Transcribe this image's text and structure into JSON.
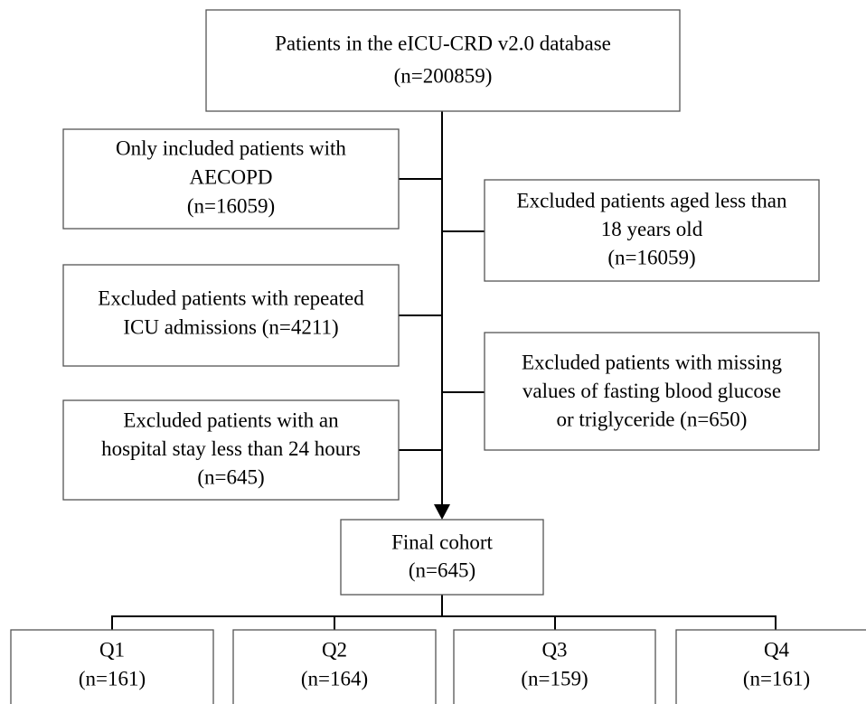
{
  "nodes": [
    {
      "lines": [
        "Patients in the eICU-CRD v2.0 database",
        "(n=200859)"
      ]
    },
    {
      "lines": [
        "Only included patients with",
        "AECOPD",
        "(n=16059)"
      ]
    },
    {
      "lines": [
        "Excluded patients aged less than",
        "18 years old",
        "(n=16059)"
      ]
    },
    {
      "lines": [
        "Excluded patients with repeated",
        "ICU admissions (n=4211)"
      ]
    },
    {
      "lines": [
        "Excluded patients with missing",
        "values of fasting blood glucose",
        "or triglyceride (n=650)"
      ]
    },
    {
      "lines": [
        "Excluded patients with an",
        "hospital stay less than 24 hours",
        "(n=645)"
      ]
    },
    {
      "lines": [
        "Final cohort",
        "(n=645)"
      ]
    },
    {
      "lines": [
        "Q1",
        "(n=161)"
      ]
    },
    {
      "lines": [
        "Q2",
        "(n=164)"
      ]
    },
    {
      "lines": [
        "Q3",
        "(n=159)"
      ]
    },
    {
      "lines": [
        "Q4",
        "(n=161)"
      ]
    }
  ]
}
